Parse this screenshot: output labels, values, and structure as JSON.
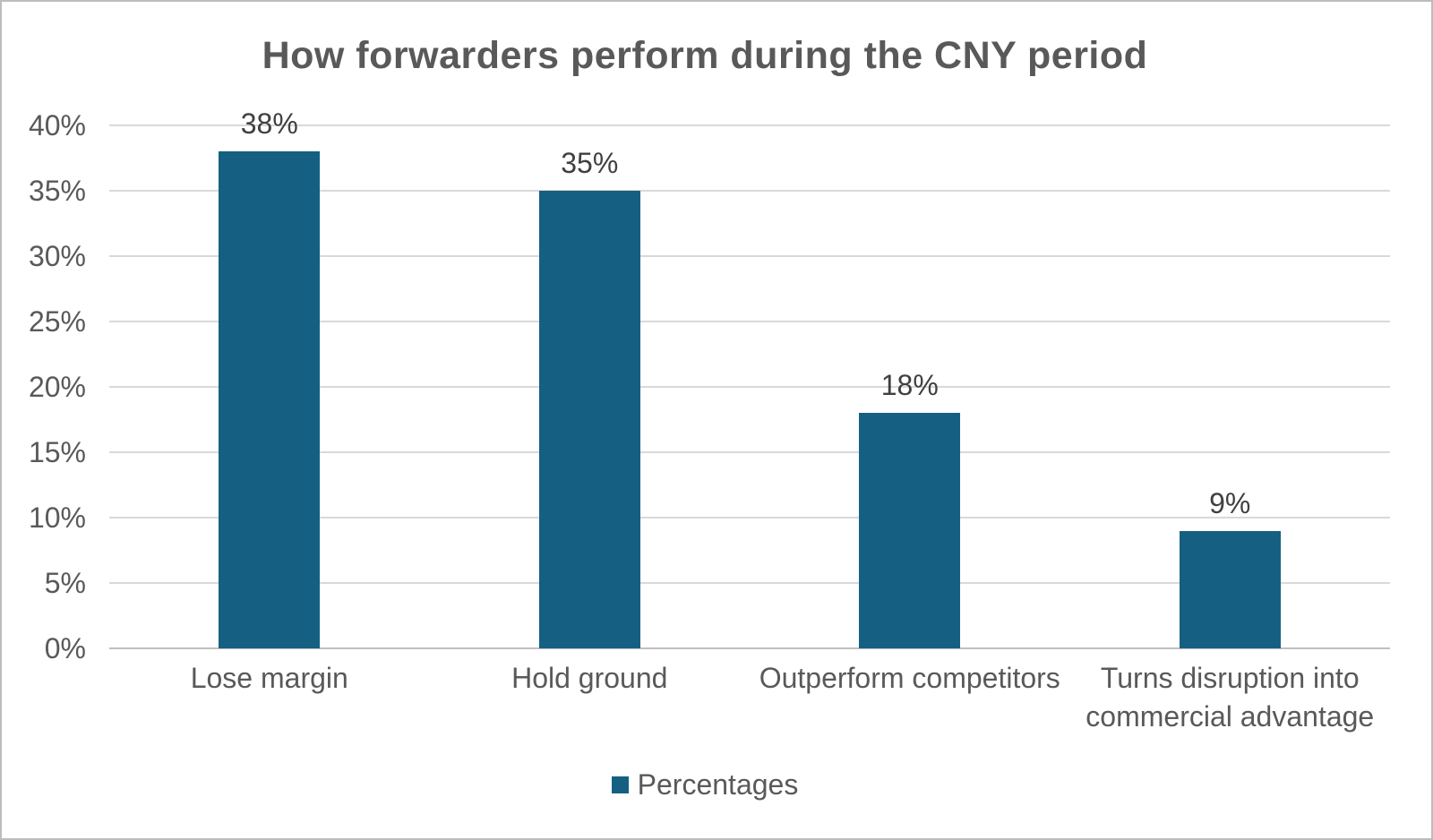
{
  "chart_data": {
    "type": "bar",
    "title": "How forwarders perform during the CNY period",
    "categories": [
      "Lose margin",
      "Hold ground",
      "Outperform competitors",
      "Turns disruption into commercial advantage"
    ],
    "series": [
      {
        "name": "Percentages",
        "values": [
          38,
          35,
          18,
          9
        ]
      }
    ],
    "data_labels": [
      "38%",
      "35%",
      "18%",
      "9%"
    ],
    "xlabel": "",
    "ylabel": "",
    "ylim": [
      0,
      40
    ],
    "y_tick_step": 5,
    "y_ticks": [
      "0%",
      "5%",
      "10%",
      "15%",
      "20%",
      "25%",
      "30%",
      "35%",
      "40%"
    ],
    "grid": true,
    "legend_position": "bottom",
    "legend_entries": [
      "Percentages"
    ]
  },
  "colors": {
    "bar": "#156082",
    "gridline": "#D9D9D9",
    "baseline": "#BFBFBF",
    "axis_text": "#595959",
    "title_text": "#595959",
    "data_label_text": "#404040",
    "legend_marker": "#156082",
    "frame_border": "#BDBDBD",
    "background": "#FFFFFF"
  }
}
